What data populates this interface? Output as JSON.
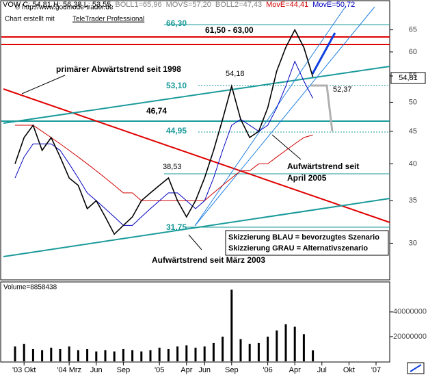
{
  "chart_data": [
    {
      "type": "line",
      "log": true,
      "header": [
        {
          "text": "VOW C: 54,81 H: 56,38 L: 53,55",
          "color": "#000000"
        },
        {
          "text": "BOLL1=65,96",
          "color": "#808080"
        },
        {
          "text": "MOVS=57,20",
          "color": "#808080"
        },
        {
          "text": "BOLL2=47,43",
          "color": "#808080"
        },
        {
          "text": "MovE=44,41",
          "color": "#d00000"
        },
        {
          "text": "MovE=50,72",
          "color": "#0000c0"
        }
      ],
      "annotations": [
        "© http://www.godmode-trader.de",
        "Chart erstellt mit",
        "TeleTrader Professional",
        "66,30",
        "61,50 - 63,00",
        "primärer Abwärtstrend seit 1998",
        "54,18",
        "53,10",
        "52,37",
        "46,74",
        "44,95",
        "38,53",
        "31,75",
        "Aufwärtstrend seit",
        "April 2005",
        "Aufwärtstrend seit März 2003",
        "Skizzierung BLAU = bevorzugtes Szenario",
        "Skizzierung GRAU = Alternativszenario"
      ],
      "price_tag": "54,81",
      "categories": [
        null,
        "'03 Okt",
        null,
        null,
        null,
        null,
        "'04 Mrz",
        null,
        null,
        "Jun",
        null,
        null,
        "Sep",
        null,
        null,
        null,
        "'05",
        null,
        null,
        "Apr",
        null,
        "Jun",
        null,
        null,
        "Sep",
        null,
        null,
        null,
        "'06",
        null,
        null,
        "Apr",
        null,
        null,
        "Jul",
        null,
        null,
        "Okt",
        null,
        null,
        "'07",
        null
      ],
      "series": [
        {
          "name": "VOW",
          "color": "#000000",
          "values": [
            40,
            44,
            46,
            42,
            44,
            41,
            38,
            37,
            34,
            35,
            33,
            31,
            32,
            33,
            35,
            36,
            37,
            38,
            35,
            33,
            35,
            38,
            42,
            47,
            53,
            47,
            44,
            45,
            49,
            56,
            61,
            65,
            61,
            54.81,
            null,
            null,
            null,
            null,
            null,
            null,
            null,
            null
          ]
        },
        {
          "name": "MovE",
          "color": "#0000c0",
          "values": [
            38,
            41,
            43,
            43,
            43,
            42,
            40,
            38,
            36,
            35,
            34,
            33,
            32,
            32,
            33,
            34,
            35,
            36,
            36,
            35,
            34,
            35,
            38,
            42,
            46,
            47,
            46,
            45,
            46,
            49,
            53,
            58,
            54,
            50.72,
            null,
            null,
            null,
            null,
            null,
            null,
            null,
            null
          ]
        },
        {
          "name": "MovE",
          "color": "#d00000",
          "values": [
            46,
            46,
            46,
            45,
            44,
            43,
            42,
            41,
            40,
            39,
            38,
            37,
            36,
            36,
            35,
            35,
            35,
            35,
            35,
            35,
            35,
            35,
            36,
            37,
            38,
            39,
            39,
            40,
            40,
            41,
            42,
            43,
            44,
            44.41,
            null,
            null,
            null,
            null,
            null,
            null,
            null,
            null
          ]
        }
      ],
      "ylim": [
        26.4,
        71
      ],
      "yticks": [
        30,
        35,
        40,
        45,
        50,
        55,
        60,
        65
      ]
    },
    {
      "type": "bar",
      "title": "Volume=8858438",
      "color": "#000000",
      "values": [
        12000000,
        14000000,
        10000000,
        9000000,
        11000000,
        10000000,
        12000000,
        9000000,
        10000000,
        8000000,
        9000000,
        8000000,
        10000000,
        9000000,
        8000000,
        9000000,
        11000000,
        10000000,
        12000000,
        13000000,
        11000000,
        12000000,
        15000000,
        20000000,
        58000000,
        18000000,
        14000000,
        15000000,
        20000000,
        25000000,
        30000000,
        28000000,
        22000000,
        8858438,
        null,
        null,
        null,
        null,
        null,
        null,
        null,
        null
      ],
      "ylim": [
        0,
        63750000
      ],
      "yticks": [
        20000000,
        40000000
      ]
    }
  ]
}
